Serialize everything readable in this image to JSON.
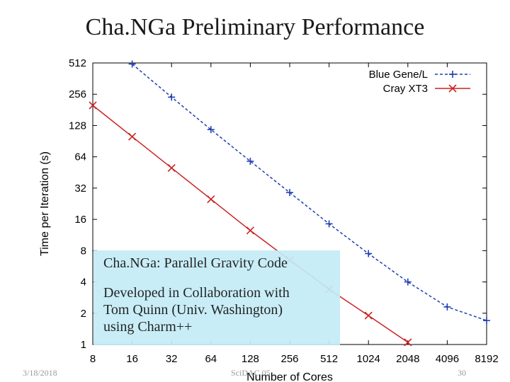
{
  "slide": {
    "title": "Cha.NGa Preliminary Performance",
    "note_title": "Cha.NGa: Parallel Gravity Code",
    "note_lines": [
      "Developed in Collaboration with",
      "Tom Quinn (Univ. Washington)",
      "using Charm++"
    ],
    "footer_date": "3/18/2018",
    "footer_event": "SciDAC 05",
    "footer_page": "30"
  },
  "chart_data": {
    "type": "line",
    "xlabel": "Number of Cores",
    "ylabel": "Time per Iteration (s)",
    "x_scale": "log2",
    "y_scale": "log2",
    "xlim": [
      8,
      8192
    ],
    "ylim": [
      1,
      512
    ],
    "x_ticks": [
      "8",
      "16",
      "32",
      "64",
      "128",
      "256",
      "512",
      "1024",
      "2048",
      "4096",
      "8192"
    ],
    "y_ticks": [
      "1",
      "2",
      "4",
      "8",
      "16",
      "32",
      "64",
      "128",
      "256",
      "512"
    ],
    "legend_position": "top-right",
    "series": [
      {
        "name": "Blue Gene/L",
        "color": "#1f3fb3",
        "marker": "plus",
        "line_style": "dashed",
        "x": [
          16,
          32,
          64,
          128,
          256,
          512,
          1024,
          2048,
          4096,
          8192
        ],
        "y": [
          500,
          240,
          117,
          58,
          29,
          14.5,
          7.5,
          4.0,
          2.3,
          1.7
        ]
      },
      {
        "name": "Cray XT3",
        "color": "#cc2222",
        "marker": "cross",
        "line_style": "solid",
        "x": [
          8,
          16,
          32,
          64,
          128,
          256,
          512,
          1024,
          2048
        ],
        "y": [
          200,
          100,
          50,
          25,
          12.5,
          6.5,
          3.4,
          1.9,
          1.05
        ]
      }
    ]
  }
}
